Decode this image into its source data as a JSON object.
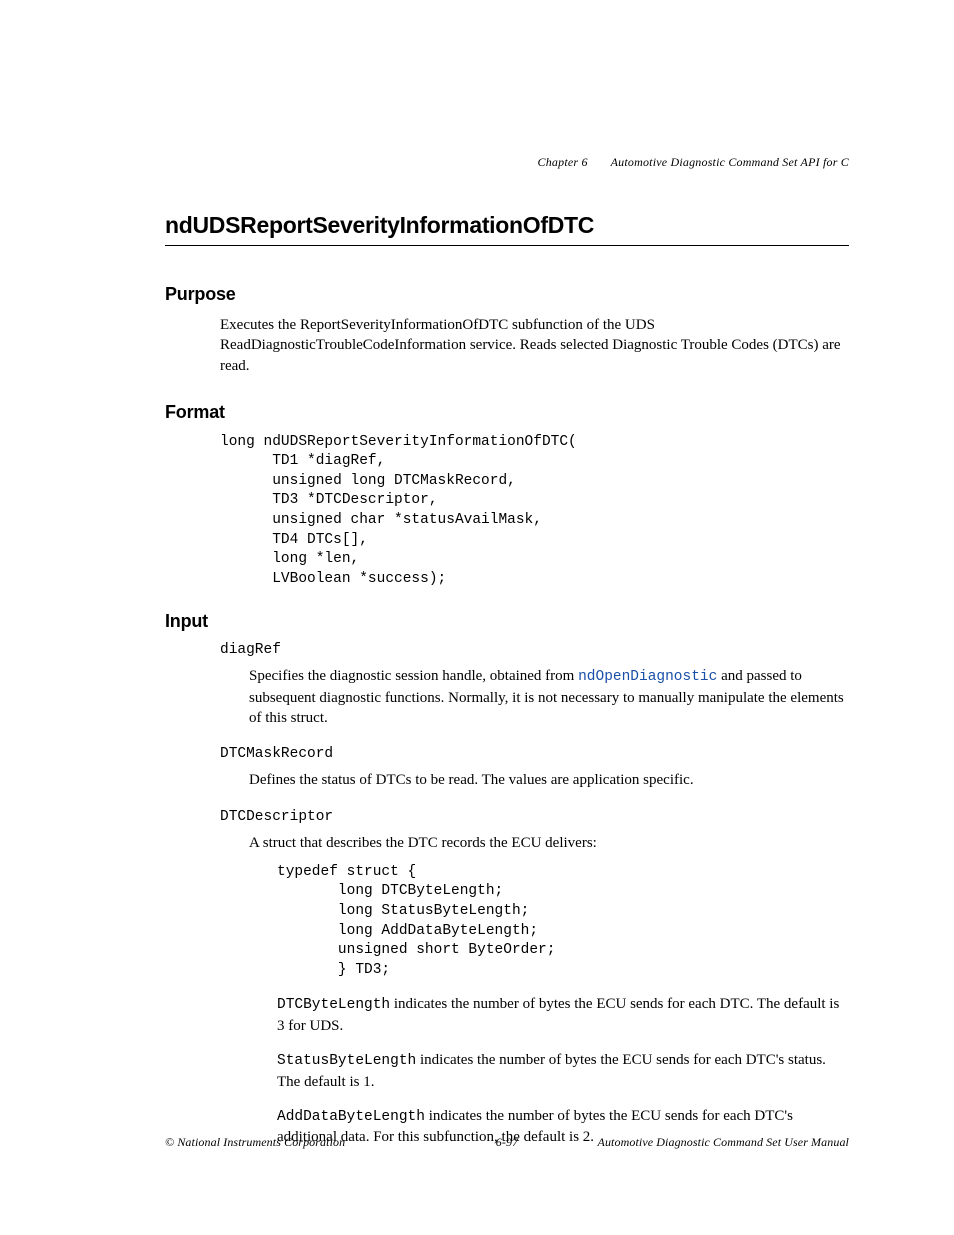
{
  "header": {
    "chapter": "Chapter 6",
    "title": "Automotive Diagnostic Command Set API for C"
  },
  "function_name": "ndUDSReportSeverityInformationOfDTC",
  "sections": {
    "purpose": {
      "heading": "Purpose",
      "body": "Executes the ReportSeverityInformationOfDTC subfunction of the UDS ReadDiagnosticTroubleCodeInformation service. Reads selected Diagnostic Trouble Codes (DTCs) are read."
    },
    "format": {
      "heading": "Format",
      "code": "long ndUDSReportSeverityInformationOfDTC(\n      TD1 *diagRef,\n      unsigned long DTCMaskRecord,\n      TD3 *DTCDescriptor,\n      unsigned char *statusAvailMask,\n      TD4 DTCs[],\n      long *len,\n      LVBoolean *success);"
    },
    "input": {
      "heading": "Input",
      "params": {
        "diagRef": {
          "name": "diagRef",
          "desc_pre": "Specifies the diagnostic session handle, obtained from ",
          "link": "ndOpenDiagnostic",
          "desc_post": " and passed to subsequent diagnostic functions. Normally, it is not necessary to manually manipulate the elements of this struct."
        },
        "DTCMaskRecord": {
          "name": "DTCMaskRecord",
          "desc": "Defines the status of DTCs to be read. The values are application specific."
        },
        "DTCDescriptor": {
          "name": "DTCDescriptor",
          "intro": "A struct that describes the DTC records the ECU delivers:",
          "struct_code": "typedef struct {\n       long DTCByteLength;\n       long StatusByteLength;\n       long AddDataByteLength;\n       unsigned short ByteOrder;\n       } TD3;",
          "fields": {
            "f1": {
              "name": "DTCByteLength",
              "text": " indicates the number of bytes the ECU sends for each DTC. The default is 3 for UDS."
            },
            "f2": {
              "name": "StatusByteLength",
              "text": " indicates the number of bytes the ECU sends for each DTC's status. The default is 1."
            },
            "f3": {
              "name": "AddDataByteLength",
              "text": " indicates the number of bytes the ECU sends for each DTC's additional data. For this subfunction, the default is 2."
            }
          }
        }
      }
    }
  },
  "footer": {
    "left": "© National Instruments Corporation",
    "center": "6-97",
    "right": "Automotive Diagnostic Command Set User Manual"
  }
}
